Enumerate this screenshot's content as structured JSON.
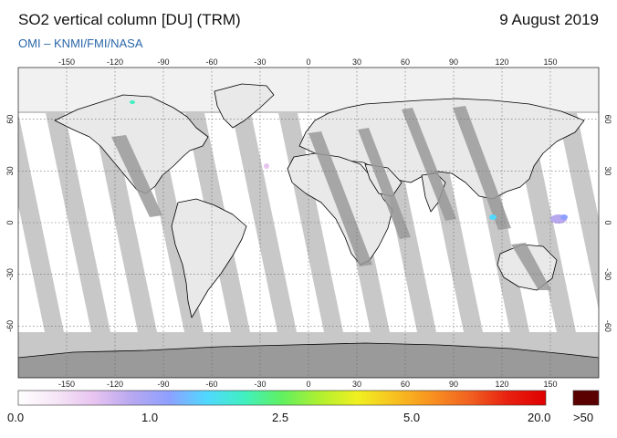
{
  "header": {
    "title": "SO2 vertical column [DU] (TRM)",
    "date": "9 August 2019",
    "credit": "OMI  –  KNMI/FMI/NASA"
  },
  "map": {
    "lon_ticks": [
      "-150",
      "-120",
      "-90",
      "-60",
      "-30",
      "0",
      "30",
      "60",
      "90",
      "120",
      "150"
    ],
    "lat_ticks_left": [
      "60",
      "30",
      "0",
      "-30",
      "-60"
    ],
    "lat_ticks_right": [
      "60",
      "30",
      "0",
      "-30",
      "-60"
    ],
    "colors": {
      "background_fill": "#c8c8c8",
      "swath_fill": "#ffffff",
      "land_shade": "#9a9a9a",
      "coastline": "#000000"
    }
  },
  "colorbar": {
    "tick_labels": [
      "0.0",
      "1.0",
      "2.5",
      "5.0",
      "20.0"
    ],
    "overflow_label": ">50",
    "overflow_color": "#5a0000",
    "gradient_stops": [
      "#ffffff",
      "#f6e6f6",
      "#e8c4f0",
      "#b8a8f0",
      "#8ea0ff",
      "#50d8ff",
      "#40f0c0",
      "#60f060",
      "#b0f030",
      "#f0f020",
      "#f8c020",
      "#f89020",
      "#f06020",
      "#e82010",
      "#e00000"
    ]
  }
}
